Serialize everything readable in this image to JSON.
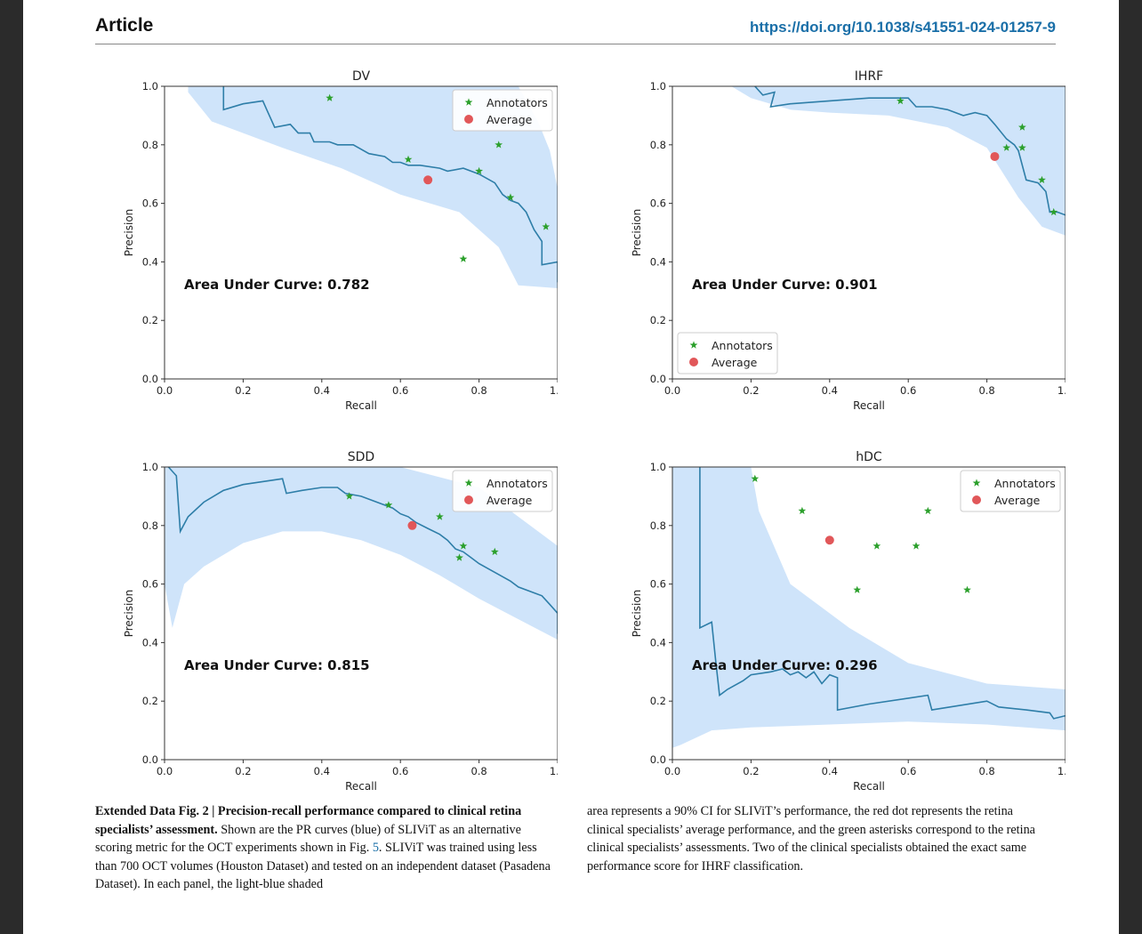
{
  "header": {
    "section": "Article",
    "doi": "https://doi.org/10.1038/s41551-024-01257-9"
  },
  "caption": {
    "head": "Extended Data Fig. 2 | Precision-recall performance compared to clinical retina specialists’ assessment.",
    "pre_ref": "Shown are the PR curves (blue) of SLIViT as an alternative scoring metric for the OCT experiments shown in Fig.",
    "ref": "5",
    "post_ref": ". SLIViT was trained using less than 700 OCT volumes (Houston Dataset) and tested on an independent dataset (Pasadena Dataset). In each panel, the light-blue shaded",
    "right": "area represents a 90% CI for SLIViT’s performance, the red dot represents the retina clinical specialists’ average performance, and the green asterisks correspond to the retina clinical specialists’ assessments. Two of the clinical specialists obtained the exact same performance score for IHRF classification."
  },
  "colors": {
    "curve": "#2e7ea8",
    "band": "#cfe4fa",
    "annotator": "#2ca02c",
    "average": "#e15759",
    "link": "#1a6fa8"
  },
  "chart_data": [
    {
      "type": "line",
      "title": "DV",
      "xlabel": "Recall",
      "ylabel": "Precision",
      "xlim": [
        0,
        1
      ],
      "ylim": [
        0,
        1
      ],
      "ticks": [
        "0.0",
        "0.2",
        "0.4",
        "0.6",
        "0.8",
        "1.0"
      ],
      "auc_text": "Area Under Curve: 0.782",
      "legend": {
        "position": "top-right",
        "annotators": "Annotators",
        "average": "Average"
      },
      "curve": [
        [
          0.15,
          1.0
        ],
        [
          0.15,
          0.92
        ],
        [
          0.2,
          0.94
        ],
        [
          0.25,
          0.95
        ],
        [
          0.26,
          0.92
        ],
        [
          0.28,
          0.86
        ],
        [
          0.32,
          0.87
        ],
        [
          0.34,
          0.84
        ],
        [
          0.37,
          0.84
        ],
        [
          0.38,
          0.81
        ],
        [
          0.42,
          0.81
        ],
        [
          0.44,
          0.8
        ],
        [
          0.48,
          0.8
        ],
        [
          0.52,
          0.77
        ],
        [
          0.56,
          0.76
        ],
        [
          0.58,
          0.74
        ],
        [
          0.6,
          0.74
        ],
        [
          0.62,
          0.73
        ],
        [
          0.65,
          0.73
        ],
        [
          0.7,
          0.72
        ],
        [
          0.72,
          0.71
        ],
        [
          0.76,
          0.72
        ],
        [
          0.8,
          0.7
        ],
        [
          0.84,
          0.67
        ],
        [
          0.86,
          0.63
        ],
        [
          0.88,
          0.61
        ],
        [
          0.9,
          0.6
        ],
        [
          0.92,
          0.57
        ],
        [
          0.94,
          0.51
        ],
        [
          0.96,
          0.47
        ],
        [
          0.96,
          0.39
        ],
        [
          1.0,
          0.4
        ],
        [
          1.0,
          0.33
        ]
      ],
      "band_upper": [
        [
          0.06,
          1.0
        ],
        [
          0.9,
          1.0
        ],
        [
          0.95,
          0.88
        ],
        [
          0.98,
          0.78
        ],
        [
          1.0,
          0.65
        ]
      ],
      "band_lower": [
        [
          1.0,
          0.31
        ],
        [
          0.9,
          0.32
        ],
        [
          0.85,
          0.45
        ],
        [
          0.75,
          0.57
        ],
        [
          0.6,
          0.63
        ],
        [
          0.45,
          0.72
        ],
        [
          0.3,
          0.79
        ],
        [
          0.2,
          0.84
        ],
        [
          0.12,
          0.88
        ],
        [
          0.06,
          0.98
        ]
      ],
      "annotators": [
        [
          0.42,
          0.96
        ],
        [
          0.62,
          0.75
        ],
        [
          0.85,
          0.8
        ],
        [
          0.8,
          0.71
        ],
        [
          0.88,
          0.62
        ],
        [
          0.97,
          0.52
        ],
        [
          0.76,
          0.41
        ]
      ],
      "average": [
        0.67,
        0.68
      ]
    },
    {
      "type": "line",
      "title": "IHRF",
      "xlabel": "Recall",
      "ylabel": "Precision",
      "xlim": [
        0,
        1
      ],
      "ylim": [
        0,
        1
      ],
      "ticks": [
        "0.0",
        "0.2",
        "0.4",
        "0.6",
        "0.8",
        "1.0"
      ],
      "auc_text": "Area Under Curve: 0.901",
      "legend": {
        "position": "bottom-left",
        "annotators": "Annotators",
        "average": "Average"
      },
      "curve": [
        [
          0.21,
          1.0
        ],
        [
          0.23,
          0.97
        ],
        [
          0.26,
          0.98
        ],
        [
          0.25,
          0.93
        ],
        [
          0.3,
          0.94
        ],
        [
          0.4,
          0.95
        ],
        [
          0.5,
          0.96
        ],
        [
          0.6,
          0.96
        ],
        [
          0.62,
          0.93
        ],
        [
          0.66,
          0.93
        ],
        [
          0.7,
          0.92
        ],
        [
          0.74,
          0.9
        ],
        [
          0.77,
          0.91
        ],
        [
          0.8,
          0.9
        ],
        [
          0.82,
          0.87
        ],
        [
          0.85,
          0.82
        ],
        [
          0.87,
          0.8
        ],
        [
          0.88,
          0.78
        ],
        [
          0.9,
          0.68
        ],
        [
          0.93,
          0.67
        ],
        [
          0.95,
          0.64
        ],
        [
          0.96,
          0.57
        ],
        [
          0.98,
          0.57
        ],
        [
          1.0,
          0.56
        ]
      ],
      "band_upper": [
        [
          0.15,
          1.0
        ],
        [
          1.0,
          1.0
        ],
        [
          1.0,
          0.62
        ]
      ],
      "band_lower": [
        [
          1.0,
          0.49
        ],
        [
          0.94,
          0.52
        ],
        [
          0.88,
          0.62
        ],
        [
          0.8,
          0.79
        ],
        [
          0.7,
          0.86
        ],
        [
          0.55,
          0.9
        ],
        [
          0.4,
          0.91
        ],
        [
          0.3,
          0.92
        ],
        [
          0.2,
          0.96
        ],
        [
          0.15,
          1.0
        ]
      ],
      "annotators": [
        [
          0.58,
          0.95
        ],
        [
          0.89,
          0.86
        ],
        [
          0.85,
          0.79
        ],
        [
          0.89,
          0.79
        ],
        [
          0.94,
          0.68
        ],
        [
          0.97,
          0.57
        ]
      ],
      "average": [
        0.82,
        0.76
      ]
    },
    {
      "type": "line",
      "title": "SDD",
      "xlabel": "Recall",
      "ylabel": "Precision",
      "xlim": [
        0,
        1
      ],
      "ylim": [
        0,
        1
      ],
      "ticks": [
        "0.0",
        "0.2",
        "0.4",
        "0.6",
        "0.8",
        "1.0"
      ],
      "auc_text": "Area Under Curve: 0.815",
      "legend": {
        "position": "top-right",
        "annotators": "Annotators",
        "average": "Average"
      },
      "curve": [
        [
          0.01,
          1.0
        ],
        [
          0.03,
          0.97
        ],
        [
          0.04,
          0.78
        ],
        [
          0.06,
          0.83
        ],
        [
          0.1,
          0.88
        ],
        [
          0.15,
          0.92
        ],
        [
          0.2,
          0.94
        ],
        [
          0.25,
          0.95
        ],
        [
          0.3,
          0.96
        ],
        [
          0.31,
          0.91
        ],
        [
          0.35,
          0.92
        ],
        [
          0.4,
          0.93
        ],
        [
          0.44,
          0.93
        ],
        [
          0.46,
          0.91
        ],
        [
          0.5,
          0.9
        ],
        [
          0.54,
          0.88
        ],
        [
          0.58,
          0.86
        ],
        [
          0.6,
          0.84
        ],
        [
          0.62,
          0.83
        ],
        [
          0.64,
          0.81
        ],
        [
          0.67,
          0.79
        ],
        [
          0.7,
          0.77
        ],
        [
          0.72,
          0.75
        ],
        [
          0.74,
          0.72
        ],
        [
          0.76,
          0.71
        ],
        [
          0.78,
          0.69
        ],
        [
          0.8,
          0.67
        ],
        [
          0.84,
          0.64
        ],
        [
          0.88,
          0.61
        ],
        [
          0.9,
          0.59
        ],
        [
          0.94,
          0.57
        ],
        [
          0.96,
          0.56
        ],
        [
          0.98,
          0.53
        ],
        [
          1.0,
          0.5
        ],
        [
          1.0,
          0.43
        ]
      ],
      "band_upper": [
        [
          0.0,
          1.0
        ],
        [
          0.6,
          1.0
        ],
        [
          0.8,
          0.93
        ],
        [
          0.9,
          0.83
        ],
        [
          1.0,
          0.73
        ]
      ],
      "band_lower": [
        [
          1.0,
          0.41
        ],
        [
          0.9,
          0.48
        ],
        [
          0.8,
          0.55
        ],
        [
          0.7,
          0.63
        ],
        [
          0.6,
          0.7
        ],
        [
          0.5,
          0.75
        ],
        [
          0.4,
          0.78
        ],
        [
          0.3,
          0.78
        ],
        [
          0.2,
          0.74
        ],
        [
          0.1,
          0.66
        ],
        [
          0.05,
          0.6
        ],
        [
          0.02,
          0.45
        ],
        [
          0.0,
          0.6
        ]
      ],
      "annotators": [
        [
          0.47,
          0.9
        ],
        [
          0.57,
          0.87
        ],
        [
          0.7,
          0.83
        ],
        [
          0.76,
          0.73
        ],
        [
          0.75,
          0.69
        ],
        [
          0.84,
          0.71
        ]
      ],
      "average": [
        0.63,
        0.8
      ]
    },
    {
      "type": "line",
      "title": "hDC",
      "xlabel": "Recall",
      "ylabel": "Precision",
      "xlim": [
        0,
        1
      ],
      "ylim": [
        0,
        1
      ],
      "ticks": [
        "0.0",
        "0.2",
        "0.4",
        "0.6",
        "0.8",
        "1.0"
      ],
      "auc_text": "Area Under Curve: 0.296",
      "legend": {
        "position": "top-right",
        "annotators": "Annotators",
        "average": "Average"
      },
      "curve": [
        [
          0.07,
          1.0
        ],
        [
          0.07,
          0.45
        ],
        [
          0.1,
          0.47
        ],
        [
          0.11,
          0.34
        ],
        [
          0.12,
          0.22
        ],
        [
          0.14,
          0.24
        ],
        [
          0.18,
          0.27
        ],
        [
          0.2,
          0.29
        ],
        [
          0.25,
          0.3
        ],
        [
          0.28,
          0.31
        ],
        [
          0.3,
          0.29
        ],
        [
          0.32,
          0.3
        ],
        [
          0.34,
          0.28
        ],
        [
          0.36,
          0.3
        ],
        [
          0.38,
          0.26
        ],
        [
          0.4,
          0.29
        ],
        [
          0.42,
          0.28
        ],
        [
          0.42,
          0.17
        ],
        [
          0.5,
          0.19
        ],
        [
          0.6,
          0.21
        ],
        [
          0.65,
          0.22
        ],
        [
          0.66,
          0.17
        ],
        [
          0.8,
          0.2
        ],
        [
          0.83,
          0.18
        ],
        [
          0.9,
          0.17
        ],
        [
          0.96,
          0.16
        ],
        [
          0.97,
          0.14
        ],
        [
          1.0,
          0.15
        ]
      ],
      "band_upper": [
        [
          0.0,
          1.0
        ],
        [
          0.2,
          1.0
        ],
        [
          0.22,
          0.85
        ],
        [
          0.3,
          0.6
        ],
        [
          0.45,
          0.45
        ],
        [
          0.6,
          0.33
        ],
        [
          0.8,
          0.26
        ],
        [
          1.0,
          0.24
        ]
      ],
      "band_lower": [
        [
          1.0,
          0.1
        ],
        [
          0.8,
          0.12
        ],
        [
          0.6,
          0.13
        ],
        [
          0.4,
          0.12
        ],
        [
          0.2,
          0.11
        ],
        [
          0.1,
          0.1
        ],
        [
          0.02,
          0.05
        ],
        [
          0.0,
          0.04
        ]
      ],
      "annotators": [
        [
          0.21,
          0.96
        ],
        [
          0.33,
          0.85
        ],
        [
          0.65,
          0.85
        ],
        [
          0.52,
          0.73
        ],
        [
          0.62,
          0.73
        ],
        [
          0.47,
          0.58
        ],
        [
          0.75,
          0.58
        ]
      ],
      "average": [
        0.4,
        0.75
      ]
    }
  ]
}
